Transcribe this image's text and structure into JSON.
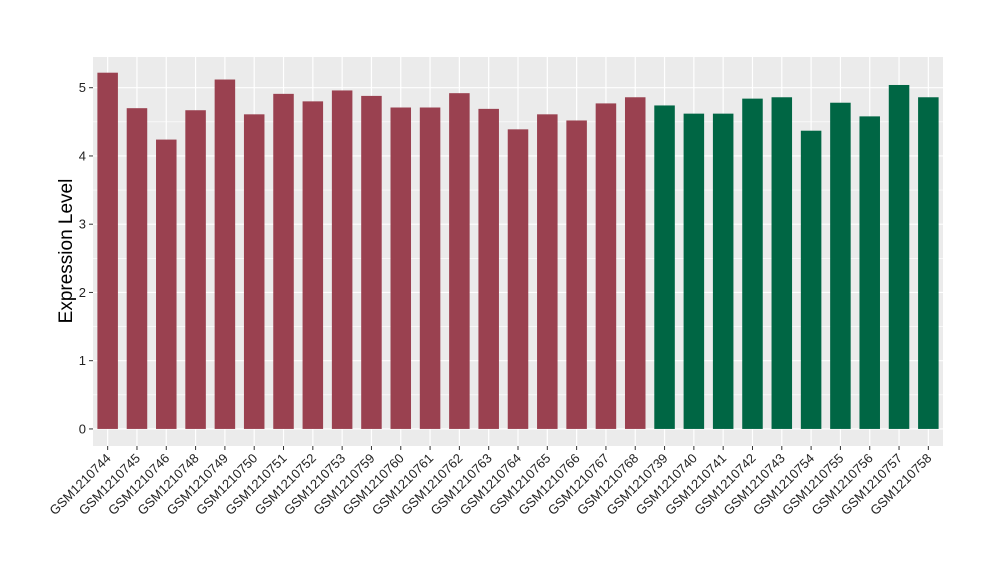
{
  "chart_data": {
    "type": "bar",
    "title": "",
    "xlabel": "",
    "ylabel": "Expression Level",
    "ylim": [
      -0.25,
      5.45
    ],
    "yticks": [
      0,
      1,
      2,
      3,
      4,
      5
    ],
    "grid": true,
    "legend": "none",
    "panel_background": "#ebebeb",
    "grid_color": "#ffffff",
    "categories": [
      "GSM1210744",
      "GSM1210745",
      "GSM1210746",
      "GSM1210748",
      "GSM1210749",
      "GSM1210750",
      "GSM1210751",
      "GSM1210752",
      "GSM1210753",
      "GSM1210759",
      "GSM1210760",
      "GSM1210761",
      "GSM1210762",
      "GSM1210763",
      "GSM1210764",
      "GSM1210765",
      "GSM1210766",
      "GSM1210767",
      "GSM1210768",
      "GSM1210739",
      "GSM1210740",
      "GSM1210741",
      "GSM1210742",
      "GSM1210743",
      "GSM1210754",
      "GSM1210755",
      "GSM1210756",
      "GSM1210757",
      "GSM1210758"
    ],
    "values": [
      5.22,
      4.7,
      4.24,
      4.67,
      5.12,
      4.61,
      4.91,
      4.8,
      4.96,
      4.88,
      4.71,
      4.71,
      4.92,
      4.69,
      4.39,
      4.61,
      4.52,
      4.77,
      4.86,
      4.74,
      4.62,
      4.62,
      4.84,
      4.86,
      4.37,
      4.78,
      4.58,
      5.04,
      4.86
    ],
    "bar_colors": [
      "#9a4150",
      "#9a4150",
      "#9a4150",
      "#9a4150",
      "#9a4150",
      "#9a4150",
      "#9a4150",
      "#9a4150",
      "#9a4150",
      "#9a4150",
      "#9a4150",
      "#9a4150",
      "#9a4150",
      "#9a4150",
      "#9a4150",
      "#9a4150",
      "#9a4150",
      "#9a4150",
      "#9a4150",
      "#006644",
      "#006644",
      "#006644",
      "#006644",
      "#006644",
      "#006644",
      "#006644",
      "#006644",
      "#006644",
      "#006644"
    ]
  }
}
